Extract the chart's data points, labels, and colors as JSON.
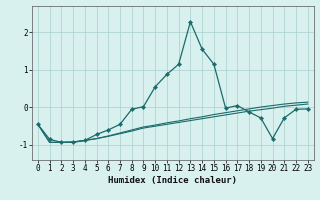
{
  "xlabel": "Humidex (Indice chaleur)",
  "ylabel": "",
  "bg_color": "#d8f0ee",
  "line_color": "#1a6b6b",
  "grid_color": "#a8cece",
  "x": [
    0,
    1,
    2,
    3,
    4,
    5,
    6,
    7,
    8,
    9,
    10,
    11,
    12,
    13,
    14,
    15,
    16,
    17,
    18,
    19,
    20,
    21,
    22,
    23
  ],
  "line1": [
    -0.45,
    -0.85,
    -0.93,
    -0.93,
    -0.88,
    -0.72,
    -0.6,
    -0.45,
    -0.05,
    0.02,
    0.55,
    0.88,
    1.15,
    2.28,
    1.55,
    1.15,
    -0.02,
    0.05,
    -0.12,
    -0.28,
    -0.83,
    -0.28,
    -0.05,
    -0.04
  ],
  "line2": [
    -0.45,
    -0.93,
    -0.93,
    -0.92,
    -0.88,
    -0.83,
    -0.77,
    -0.7,
    -0.63,
    -0.55,
    -0.5,
    -0.45,
    -0.4,
    -0.35,
    -0.3,
    -0.25,
    -0.2,
    -0.15,
    -0.1,
    -0.06,
    -0.02,
    0.03,
    0.06,
    0.09
  ],
  "line3": [
    -0.45,
    -0.93,
    -0.93,
    -0.92,
    -0.88,
    -0.83,
    -0.76,
    -0.68,
    -0.6,
    -0.52,
    -0.47,
    -0.41,
    -0.36,
    -0.3,
    -0.25,
    -0.19,
    -0.14,
    -0.09,
    -0.04,
    0.01,
    0.05,
    0.09,
    0.12,
    0.14
  ],
  "ylim": [
    -1.4,
    2.7
  ],
  "yticks": [
    -1,
    0,
    1,
    2
  ],
  "xticks": [
    0,
    1,
    2,
    3,
    4,
    5,
    6,
    7,
    8,
    9,
    10,
    11,
    12,
    13,
    14,
    15,
    16,
    17,
    18,
    19,
    20,
    21,
    22,
    23
  ],
  "tick_fontsize": 5.5,
  "axis_fontsize": 6.5
}
